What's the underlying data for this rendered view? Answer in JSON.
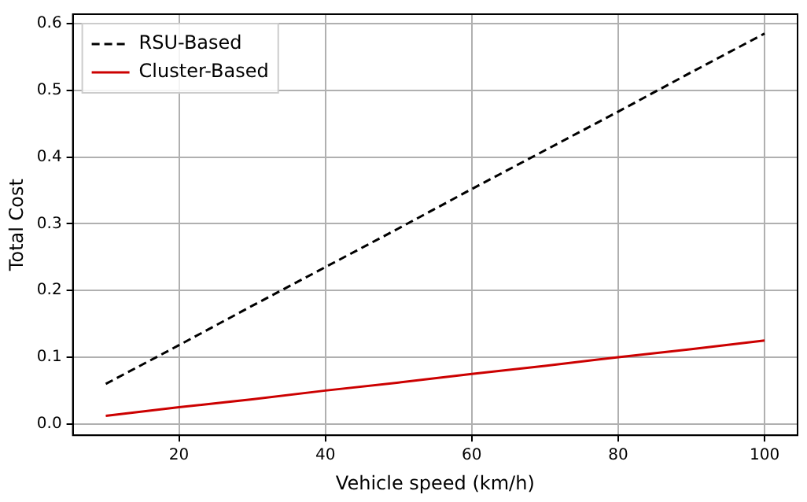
{
  "chart_data": {
    "type": "line",
    "xlabel": "Vehicle speed (km/h)",
    "ylabel": "Total Cost",
    "x": [
      10,
      20,
      30,
      40,
      50,
      60,
      70,
      80,
      90,
      100
    ],
    "series": [
      {
        "name": "RSU-Based",
        "color": "#000000",
        "line_style": "dashed",
        "values": [
          0.06,
          0.118,
          0.177,
          0.235,
          0.293,
          0.352,
          0.41,
          0.468,
          0.527,
          0.585
        ]
      },
      {
        "name": "Cluster-Based",
        "color": "#cc0000",
        "line_style": "solid",
        "values": [
          0.012,
          0.025,
          0.037,
          0.05,
          0.062,
          0.075,
          0.087,
          0.1,
          0.112,
          0.125
        ]
      }
    ],
    "xlim": [
      5.5,
      104.5
    ],
    "xticks": [
      20,
      40,
      60,
      80,
      100
    ],
    "ylim": [
      -0.017,
      0.614
    ],
    "yticks": [
      {
        "value": 0,
        "label": "0.0"
      },
      0.1,
      0.2,
      0.3,
      0.4,
      0.5,
      0.6
    ],
    "grid": true,
    "legend": "top left",
    "marker": "none"
  }
}
